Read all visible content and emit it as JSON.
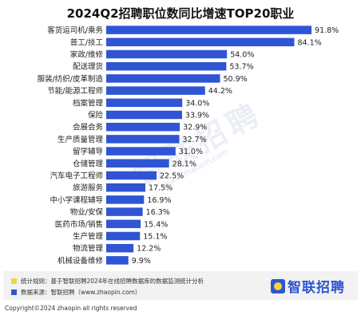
{
  "chart_data": {
    "type": "bar",
    "orientation": "horizontal",
    "title": "2024Q2招聘职位数同比增速TOP20职业",
    "categories": [
      "客货运司机/乘务",
      "普工/技工",
      "家政/维修",
      "配送理货",
      "服装/纺织/皮革制造",
      "节能/能源工程师",
      "档案管理",
      "保险",
      "会展会务",
      "生产质量管理",
      "留学辅导",
      "仓储管理",
      "汽车电子工程师",
      "旅游服务",
      "中小学课程辅导",
      "物业/安保",
      "医药市场/销售",
      "生产管理",
      "物流管理",
      "机械设备维修"
    ],
    "values": [
      91.8,
      84.1,
      54.0,
      53.7,
      50.9,
      44.2,
      34.0,
      33.9,
      32.9,
      32.7,
      31.0,
      28.1,
      22.5,
      17.5,
      16.9,
      16.3,
      15.4,
      15.1,
      12.2,
      9.9
    ],
    "value_labels": [
      "91.8%",
      "84.1%",
      "54.0%",
      "53.7%",
      "50.9%",
      "44.2%",
      "34.0%",
      "33.9%",
      "32.9%",
      "32.7%",
      "31.0%",
      "28.1%",
      "22.5%",
      "17.5%",
      "16.9%",
      "16.3%",
      "15.4%",
      "15.1%",
      "12.2%",
      "9.9%"
    ],
    "unit": "%",
    "xlim": [
      0,
      100
    ],
    "grid": false,
    "legend": "none",
    "bar_color": "#2f55d4"
  },
  "watermark": {
    "text": "智联招聘",
    "url": "www.zhaopin.com"
  },
  "notes": {
    "rule": "统计规则：基于智联招聘2024年在线招聘数据库的数据监测统计分析",
    "rule_color": "#f3d43b",
    "source": "数据来源：智联招聘（www.zhaopin.com）",
    "source_color": "#2f55d4"
  },
  "brand": {
    "name": "智联招聘",
    "icon": "zhilian-logo-icon"
  },
  "copyright": "Copyright©2024 zhaopin all rights reserved"
}
